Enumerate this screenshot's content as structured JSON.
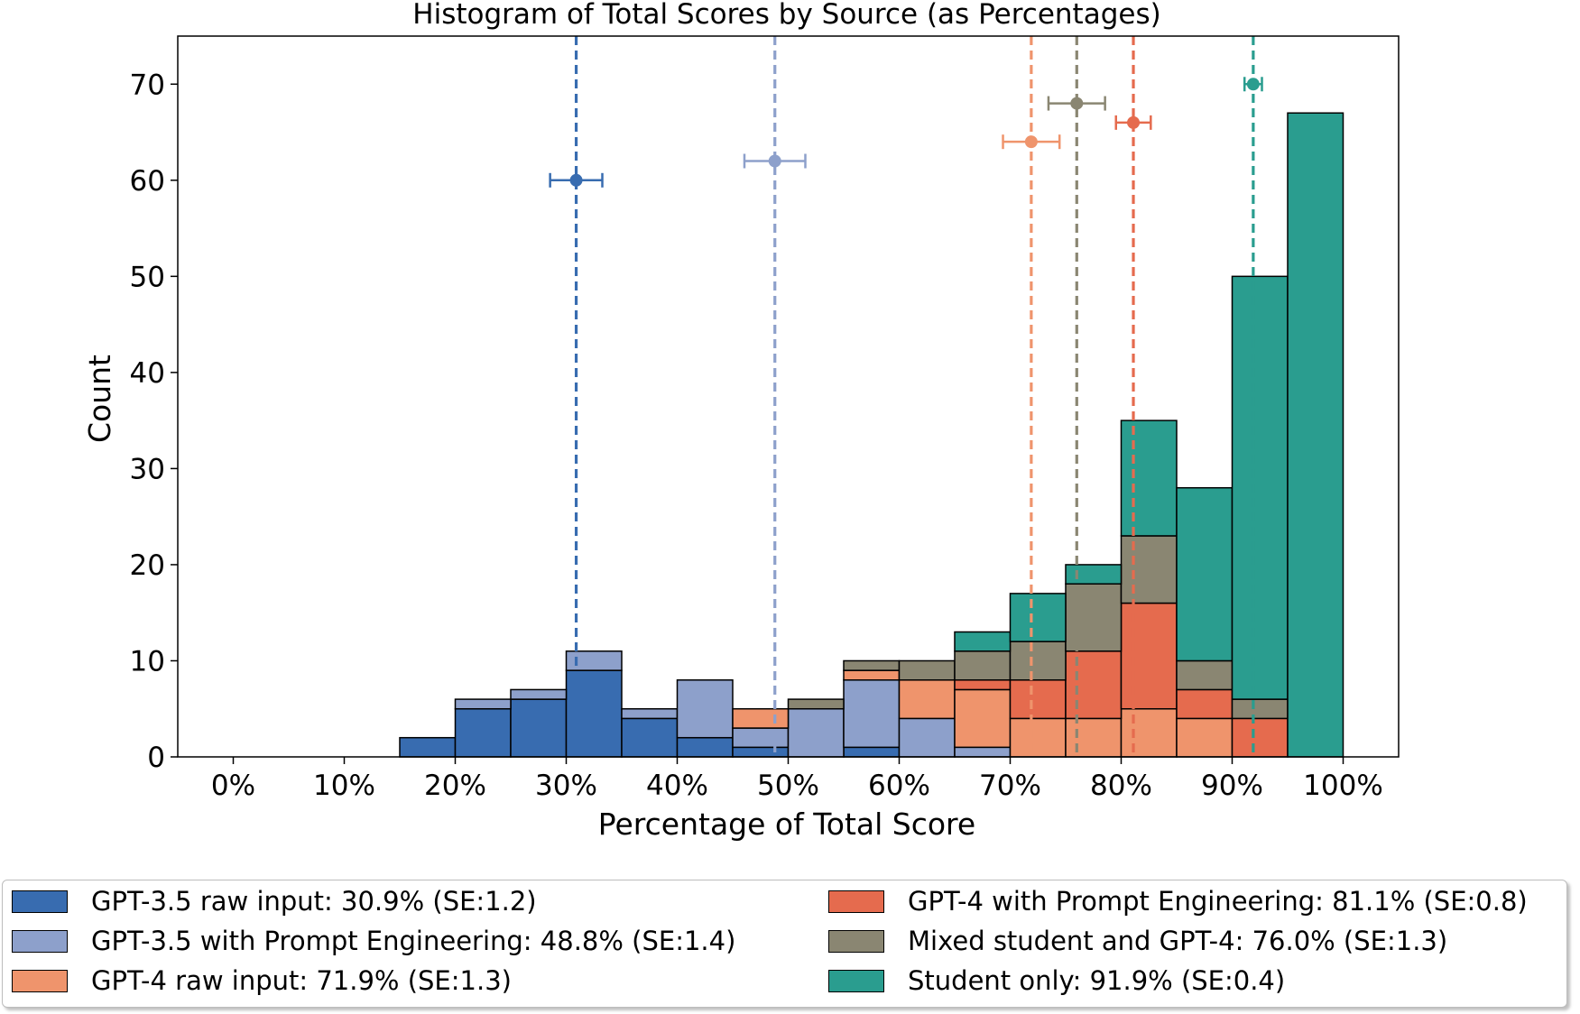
{
  "chart_data": {
    "type": "bar",
    "stacked": true,
    "title": "Histogram of Total Scores by Source (as Percentages)",
    "xlabel": "Percentage of Total Score",
    "ylabel": "Count",
    "xlim": [
      -5,
      105
    ],
    "ylim": [
      0,
      75
    ],
    "xticks": [
      0,
      10,
      20,
      30,
      40,
      50,
      60,
      70,
      80,
      90,
      100
    ],
    "xtick_labels": [
      "0%",
      "10%",
      "20%",
      "30%",
      "40%",
      "50%",
      "60%",
      "70%",
      "80%",
      "90%",
      "100%"
    ],
    "yticks": [
      0,
      10,
      20,
      30,
      40,
      50,
      60,
      70
    ],
    "ytick_labels": [
      "0",
      "10",
      "20",
      "30",
      "40",
      "50",
      "60",
      "70"
    ],
    "bin_edges": [
      0,
      5,
      10,
      15,
      20,
      25,
      30,
      35,
      40,
      45,
      50,
      55,
      60,
      65,
      70,
      75,
      80,
      85,
      90,
      95,
      100
    ],
    "series": [
      {
        "name": "GPT-3.5 raw input: 30.9% (SE:1.2)",
        "color": "#386cb0",
        "values": [
          0,
          0,
          0,
          2,
          5,
          6,
          9,
          4,
          2,
          1,
          0,
          1,
          0,
          0,
          0,
          0,
          0,
          0,
          0,
          0
        ],
        "mean": 30.9,
        "se": 1.2,
        "marker_y": 60
      },
      {
        "name": "GPT-3.5 with Prompt Engineering: 48.8% (SE:1.4)",
        "color": "#8da0cb",
        "values": [
          0,
          0,
          0,
          0,
          1,
          1,
          2,
          1,
          6,
          2,
          5,
          7,
          4,
          1,
          0,
          0,
          0,
          0,
          0,
          0
        ],
        "mean": 48.8,
        "se": 1.4,
        "marker_y": 62
      },
      {
        "name": "GPT-4 raw input: 71.9% (SE:1.3)",
        "color": "#ef946c",
        "values": [
          0,
          0,
          0,
          0,
          0,
          0,
          0,
          0,
          0,
          2,
          0,
          1,
          4,
          6,
          4,
          4,
          5,
          4,
          0,
          0
        ],
        "mean": 71.9,
        "se": 1.3,
        "marker_y": 64
      },
      {
        "name": "GPT-4 with Prompt Engineering: 81.1% (SE:0.8)",
        "color": "#e56b4e",
        "values": [
          0,
          0,
          0,
          0,
          0,
          0,
          0,
          0,
          0,
          0,
          0,
          0,
          0,
          1,
          4,
          7,
          11,
          3,
          4,
          0
        ],
        "mean": 81.1,
        "se": 0.8,
        "marker_y": 66
      },
      {
        "name": "Mixed student and GPT-4: 76.0% (SE:1.3)",
        "color": "#8a8672",
        "values": [
          0,
          0,
          0,
          0,
          0,
          0,
          0,
          0,
          0,
          0,
          1,
          1,
          2,
          3,
          4,
          7,
          7,
          3,
          2,
          0
        ],
        "mean": 76.0,
        "se": 1.3,
        "marker_y": 68
      },
      {
        "name": "Student only: 91.9% (SE:0.4)",
        "color": "#2a9d8f",
        "values": [
          0,
          0,
          0,
          0,
          0,
          0,
          0,
          0,
          0,
          0,
          0,
          0,
          0,
          2,
          5,
          2,
          12,
          18,
          44,
          67
        ],
        "mean": 91.9,
        "se": 0.4,
        "marker_y": 70
      }
    ],
    "legend_position": "bottom"
  }
}
